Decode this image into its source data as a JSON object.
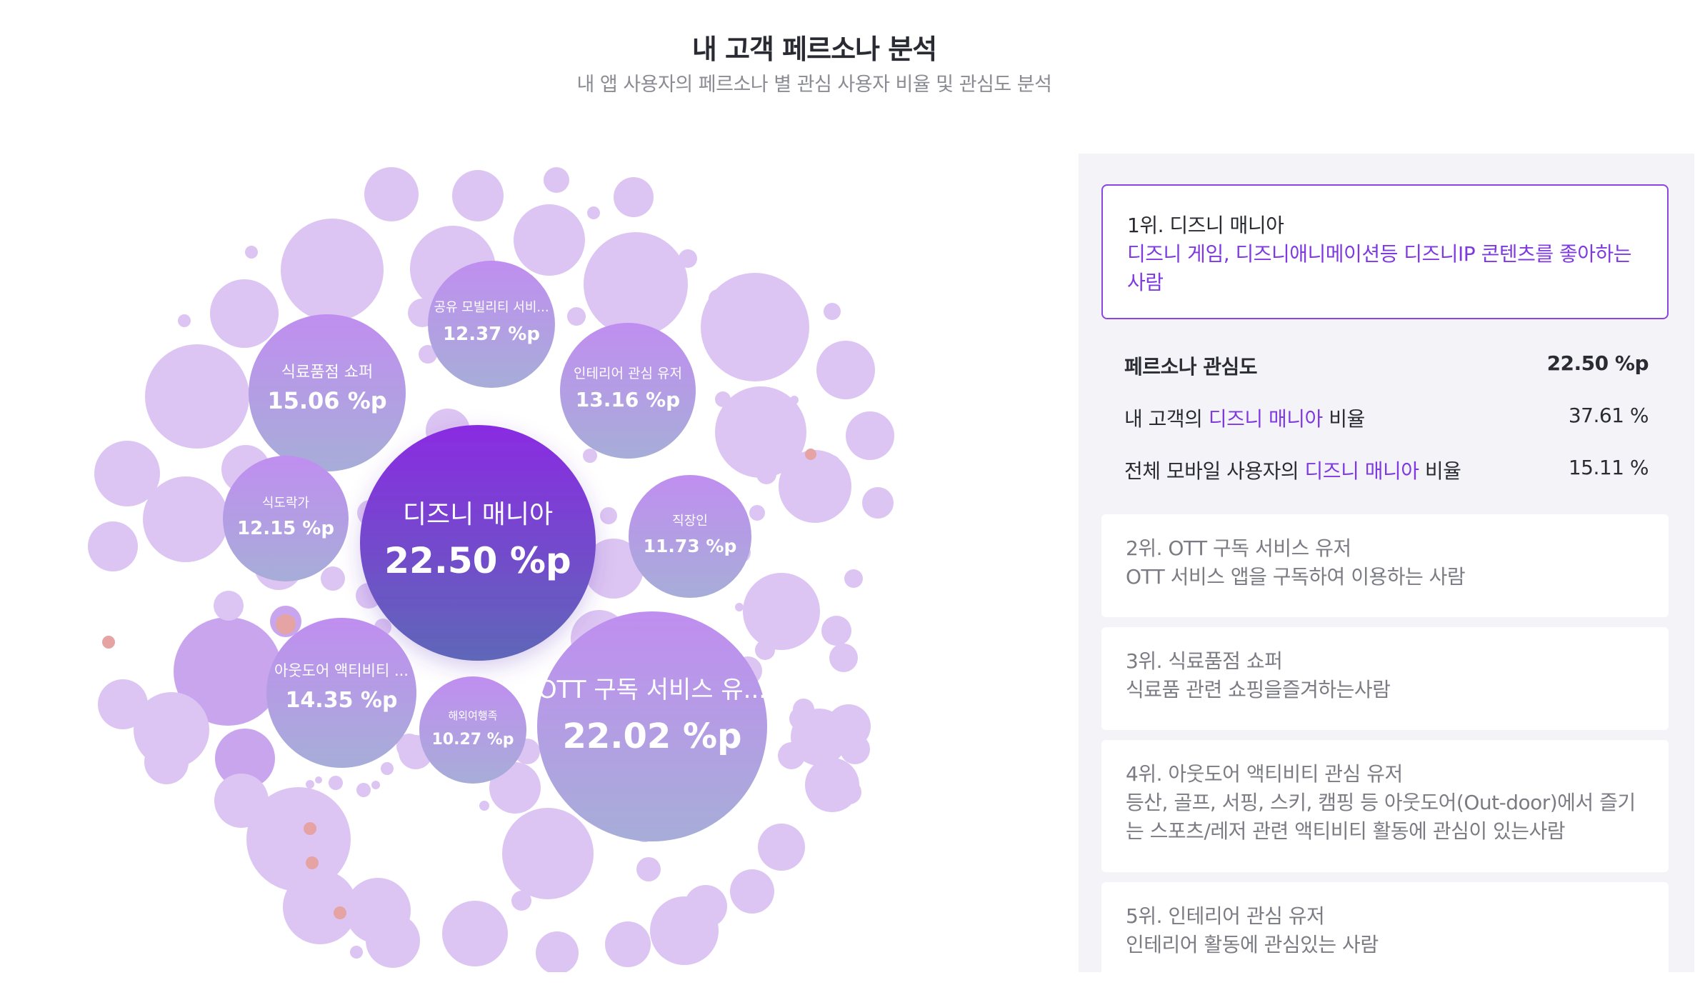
{
  "header": {
    "title": "내 고객 페르소나 분석",
    "subtitle": "내 앱 사용자의 페르소나 별 관심 사용자 비율 및 관심도 분석"
  },
  "chart_data": {
    "type": "bubble",
    "title": "내 고객 페르소나 분석",
    "unit": "%p",
    "series": [
      {
        "name": "디즈니 매니아",
        "value": 22.5,
        "label": "22.50 %p"
      },
      {
        "name": "OTT 구독 서비스 유...",
        "value": 22.02,
        "label": "22.02 %p"
      },
      {
        "name": "식료품점 쇼퍼",
        "value": 15.06,
        "label": "15.06 %p"
      },
      {
        "name": "아웃도어 액티비티 ...",
        "value": 14.35,
        "label": "14.35 %p"
      },
      {
        "name": "인테리어 관심 유저",
        "value": 13.16,
        "label": "13.16 %p"
      },
      {
        "name": "공유 모빌리티 서비...",
        "value": 12.37,
        "label": "12.37 %p"
      },
      {
        "name": "식도락가",
        "value": 12.15,
        "label": "12.15 %p"
      },
      {
        "name": "직장인",
        "value": 11.73,
        "label": "11.73 %p"
      },
      {
        "name": "해외여행족",
        "value": 10.27,
        "label": "10.27 %p"
      }
    ],
    "colors": {
      "top_gradient": [
        "#8a2be2",
        "#5f67b8"
      ],
      "labeled_gradient": [
        "#c08ef0",
        "#a7add8"
      ],
      "background_bubble": "#dcc5f2",
      "background_bubble_dark": "#c9a5ee",
      "negative_bubble": "#e5a3a3"
    }
  },
  "panel": {
    "rank1": {
      "title": "1위. 디즈니 매니아",
      "desc": "디즈니 게임, 디즈니애니메이션등 디즈니IP 콘텐츠를 좋아하는 사람"
    },
    "stats": {
      "interest_label": "페르소나 관심도",
      "interest_value": "22.50 %p",
      "mine_prefix": "내 고객의 ",
      "mine_highlight": "디즈니 매니아",
      "mine_suffix": " 비율",
      "mine_value": "37.61 %",
      "all_prefix": "전체 모바일 사용자의 ",
      "all_highlight": "디즈니 매니아",
      "all_suffix": " 비율",
      "all_value": "15.11 %"
    },
    "ranks": [
      {
        "title": "2위. OTT 구독 서비스 유저",
        "desc": "OTT 서비스 앱을 구독하여 이용하는 사람"
      },
      {
        "title": "3위. 식료품점 쇼퍼",
        "desc": "식료품 관련 쇼핑을즐겨하는사람"
      },
      {
        "title": "4위. 아웃도어 액티비티 관심 유저",
        "desc": "등산, 골프, 서핑, 스키, 캠핑 등 아웃도어(Out-door)에서 즐기는 스포츠/레저 관련 액티비티 활동에 관심이 있는사람"
      },
      {
        "title": "5위. 인테리어 관심 유저",
        "desc": "인테리어 활동에 관심있는 사람"
      }
    ]
  }
}
